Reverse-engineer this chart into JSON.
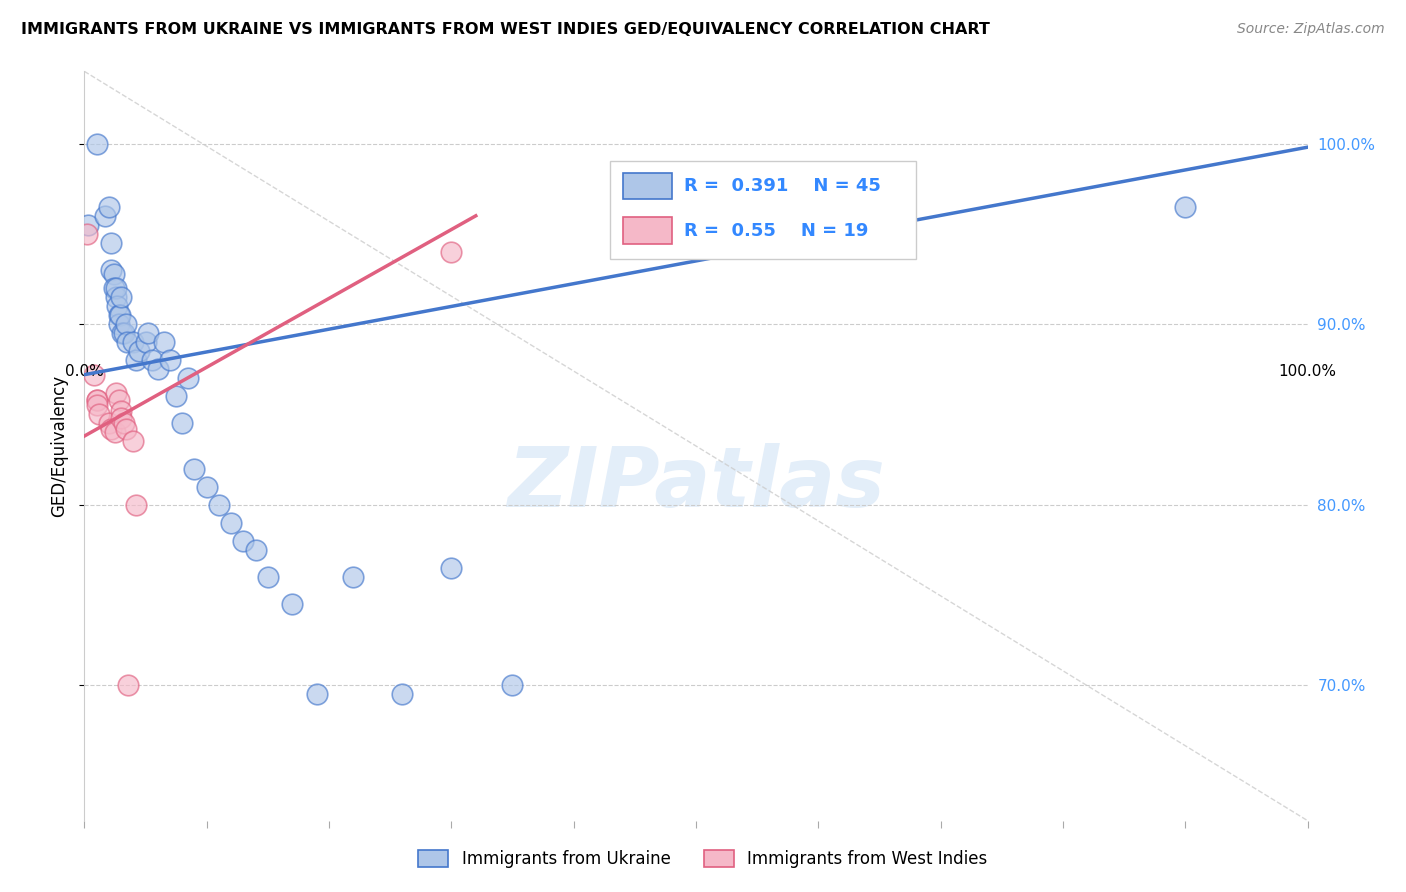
{
  "title": "IMMIGRANTS FROM UKRAINE VS IMMIGRANTS FROM WEST INDIES GED/EQUIVALENCY CORRELATION CHART",
  "source": "Source: ZipAtlas.com",
  "ylabel": "GED/Equivalency",
  "xlim": [
    0.0,
    1.0
  ],
  "ylim": [
    0.625,
    1.04
  ],
  "yticks": [
    0.7,
    0.8,
    0.9,
    1.0
  ],
  "ytick_labels": [
    "70.0%",
    "80.0%",
    "90.0%",
    "100.0%"
  ],
  "ukraine_R": 0.391,
  "ukraine_N": 45,
  "westindies_R": 0.55,
  "westindies_N": 19,
  "ukraine_color": "#aec6e8",
  "westindies_color": "#f5b8c8",
  "ukraine_line_color": "#4477cc",
  "westindies_line_color": "#e06080",
  "background_color": "#ffffff",
  "ukraine_x": [
    0.003,
    0.01,
    0.017,
    0.02,
    0.022,
    0.022,
    0.024,
    0.024,
    0.026,
    0.026,
    0.027,
    0.028,
    0.028,
    0.029,
    0.03,
    0.031,
    0.032,
    0.034,
    0.035,
    0.04,
    0.042,
    0.045,
    0.05,
    0.052,
    0.055,
    0.06,
    0.065,
    0.07,
    0.075,
    0.08,
    0.085,
    0.09,
    0.1,
    0.11,
    0.12,
    0.13,
    0.14,
    0.15,
    0.17,
    0.19,
    0.22,
    0.26,
    0.3,
    0.35,
    0.9
  ],
  "ukraine_y": [
    0.955,
    1.0,
    0.96,
    0.965,
    0.945,
    0.93,
    0.928,
    0.92,
    0.915,
    0.92,
    0.91,
    0.905,
    0.9,
    0.905,
    0.915,
    0.895,
    0.895,
    0.9,
    0.89,
    0.89,
    0.88,
    0.885,
    0.89,
    0.895,
    0.88,
    0.875,
    0.89,
    0.88,
    0.86,
    0.845,
    0.87,
    0.82,
    0.81,
    0.8,
    0.79,
    0.78,
    0.775,
    0.76,
    0.745,
    0.695,
    0.76,
    0.695,
    0.765,
    0.7,
    0.965
  ],
  "westindies_x": [
    0.002,
    0.008,
    0.01,
    0.01,
    0.01,
    0.012,
    0.02,
    0.022,
    0.025,
    0.026,
    0.028,
    0.03,
    0.03,
    0.032,
    0.034,
    0.036,
    0.04,
    0.042,
    0.3
  ],
  "westindies_y": [
    0.95,
    0.872,
    0.858,
    0.858,
    0.855,
    0.85,
    0.845,
    0.842,
    0.84,
    0.862,
    0.858,
    0.852,
    0.848,
    0.845,
    0.842,
    0.7,
    0.835,
    0.8,
    0.94
  ],
  "ukraine_line_x": [
    0.0,
    1.0
  ],
  "ukraine_line_y": [
    0.872,
    0.998
  ],
  "westindies_line_x": [
    0.0,
    0.32
  ],
  "westindies_line_y": [
    0.838,
    0.96
  ],
  "diag_line_x": [
    0.0,
    1.0
  ],
  "diag_line_y": [
    1.04,
    0.625
  ],
  "watermark": "ZIPatlas",
  "legend_ukraine_label": "Immigrants from Ukraine",
  "legend_westindies_label": "Immigrants from West Indies"
}
